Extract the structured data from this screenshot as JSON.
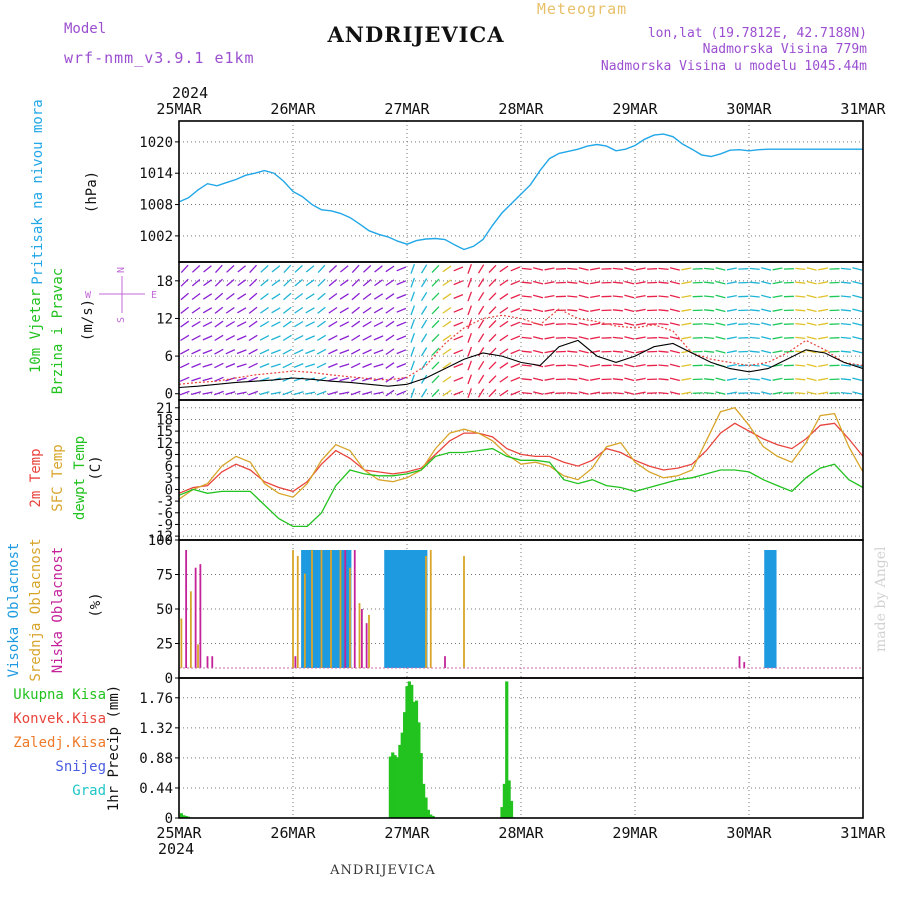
{
  "header": {
    "model_label": "Model",
    "model_name": "wrf-nmm_v3.9.1 e1km",
    "title": "ANDRIJEVICA",
    "subtitle": "Meteogram",
    "lonlat": "lon,lat (19.7812E, 42.7188N)",
    "altitude": "Nadmorska Visina 779m",
    "model_altitude": "Nadmorska Visina u modelu 1045.44m",
    "footer_title": "ANDRIJEVICA",
    "watermark": "made by Angel"
  },
  "colors": {
    "pressure": "#22a7e8",
    "temp2m": "#e8443c",
    "sfc": "#d8a52a",
    "dewpt": "#22c21f",
    "high_cloud": "#1e9be0",
    "mid_cloud": "#d8a52a",
    "low_cloud": "#c4229a",
    "precip_total": "#22c21f",
    "model_text": "#9b4fd0",
    "meteogram_text": "#e8c06a"
  },
  "chart_data": [
    {
      "type": "line",
      "id": "pressure",
      "ylabel": "Pritisak na nivou mora",
      "unit": "(hPa)",
      "ylim": [
        997,
        1024
      ],
      "yticks": [
        "1002",
        "1008",
        "1014",
        "1020"
      ],
      "ytick_values": [
        1002,
        1008,
        1014,
        1020
      ],
      "x_hours": [
        0,
        2,
        4,
        6,
        8,
        10,
        12,
        14,
        16,
        18,
        20,
        22,
        24,
        26,
        28,
        30,
        32,
        34,
        36,
        38,
        40,
        42,
        44,
        46,
        48,
        50,
        52,
        54,
        56,
        58,
        60,
        62,
        64,
        66,
        68,
        70,
        72,
        74,
        76,
        78,
        80,
        82,
        84,
        86,
        88,
        90,
        92,
        94,
        96,
        98,
        100,
        102,
        104,
        106,
        108,
        110,
        112,
        114,
        116,
        118,
        120,
        122,
        124,
        126,
        128,
        130,
        132,
        134,
        136,
        138,
        140,
        142,
        144
      ],
      "series": [
        {
          "values": [
            1008.5,
            1009.3,
            1010.8,
            1012.0,
            1011.6,
            1012.2,
            1012.8,
            1013.6,
            1014.0,
            1014.5,
            1014.0,
            1012.5,
            1010.5,
            1009.5,
            1008.0,
            1007.0,
            1006.8,
            1006.3,
            1005.5,
            1004.3,
            1003.0,
            1002.3,
            1001.8,
            1001.0,
            1000.4,
            1001.1,
            1001.4,
            1001.5,
            1001.3,
            1000.3,
            999.4,
            1000.0,
            1001.3,
            1004.0,
            1006.4,
            1008.2,
            1010.0,
            1011.8,
            1014.5,
            1016.8,
            1017.8,
            1018.2,
            1018.6,
            1019.2,
            1019.5,
            1019.2,
            1018.3,
            1018.6,
            1019.3,
            1020.5,
            1021.3,
            1021.5,
            1021.0,
            1019.6,
            1018.6,
            1017.5,
            1017.2,
            1017.7,
            1018.4,
            1018.5,
            1018.3,
            1018.5,
            1018.6,
            1018.6,
            1018.6,
            1018.6,
            1018.6,
            1018.6,
            1018.6,
            1018.6,
            1018.6,
            1018.6,
            1018.6
          ]
        }
      ]
    },
    {
      "type": "line",
      "id": "wind",
      "ylabel": [
        "10m Vjetar",
        "Brzina i Pravac"
      ],
      "unit": "(m/s)",
      "compass": {
        "north": "N",
        "south": "S",
        "west": "W",
        "east": "E"
      },
      "ylim": [
        -1,
        21
      ],
      "yticks": [
        "0",
        "6",
        "12",
        "18"
      ],
      "ytick_values": [
        0,
        6,
        12,
        18
      ],
      "arrow_columns": 60,
      "arrow_rows": 10,
      "x_hours": [
        0,
        4,
        8,
        12,
        16,
        20,
        24,
        28,
        32,
        36,
        40,
        44,
        48,
        52,
        56,
        60,
        64,
        68,
        72,
        76,
        80,
        84,
        88,
        92,
        96,
        100,
        104,
        108,
        112,
        116,
        120,
        124,
        128,
        132,
        136,
        140,
        144
      ],
      "series": [
        {
          "name": "speed",
          "color": "#000000",
          "values": [
            1.0,
            1.2,
            1.5,
            1.8,
            2.0,
            2.2,
            2.5,
            2.3,
            2.0,
            1.8,
            1.5,
            1.2,
            1.5,
            2.5,
            4.0,
            5.5,
            6.5,
            6.0,
            5.0,
            4.5,
            7.5,
            8.5,
            6.0,
            5.0,
            6.0,
            7.5,
            8.0,
            6.5,
            5.0,
            4.0,
            3.5,
            4.0,
            5.5,
            7.0,
            6.5,
            5.0,
            4.0
          ]
        },
        {
          "name": "gust",
          "color": "#e8443c",
          "values": [
            1.5,
            1.8,
            2.0,
            2.5,
            3.0,
            3.3,
            3.6,
            3.4,
            3.0,
            2.7,
            2.4,
            2.2,
            2.6,
            4.5,
            8.0,
            10.5,
            12.0,
            12.5,
            12.0,
            11.0,
            13.5,
            12.0,
            11.5,
            10.8,
            10.5,
            11.0,
            10.0,
            6.5,
            5.5,
            5.0,
            4.5,
            5.0,
            6.5,
            8.5,
            7.0,
            5.0,
            4.5
          ]
        }
      ],
      "arrow_colors_by_speed": [
        {
          "max_speed": 1,
          "color": "#1f3fd9"
        },
        {
          "max_speed": 3,
          "color": "#8a1fd3"
        },
        {
          "max_speed": 5,
          "color": "#1fb4d6"
        },
        {
          "max_speed": 7,
          "color": "#1fc95a"
        },
        {
          "max_speed": 9,
          "color": "#e0c22a"
        },
        {
          "max_speed": 99,
          "color": "#e8224b"
        }
      ]
    },
    {
      "type": "line",
      "id": "temperature",
      "ylabel": [
        "2m Temp",
        "SFC Temp",
        "dewpt Temp"
      ],
      "unit": "(C)",
      "ylim": [
        -13,
        23
      ],
      "yticks": [
        "-12",
        "-9",
        "-6",
        "-3",
        "0",
        "3",
        "6",
        "9",
        "12",
        "15",
        "18",
        "21"
      ],
      "ytick_values": [
        -12,
        -9,
        -6,
        -3,
        0,
        3,
        6,
        9,
        12,
        15,
        18,
        21
      ],
      "x_hours": [
        0,
        3,
        6,
        9,
        12,
        15,
        18,
        21,
        24,
        27,
        30,
        33,
        36,
        39,
        42,
        45,
        48,
        51,
        54,
        57,
        60,
        63,
        66,
        69,
        72,
        75,
        78,
        81,
        84,
        87,
        90,
        93,
        96,
        99,
        102,
        105,
        108,
        111,
        114,
        117,
        120,
        123,
        126,
        129,
        132,
        135,
        138,
        141,
        144
      ],
      "series": [
        {
          "name": "2m Temp",
          "color": "#e8443c",
          "values": [
            -1.0,
            0.5,
            1.0,
            4.5,
            6.5,
            5.0,
            2.0,
            0.5,
            -0.5,
            2.0,
            6.5,
            10.0,
            8.0,
            5.0,
            4.5,
            4.0,
            4.5,
            5.5,
            9.0,
            12.5,
            14.5,
            14.5,
            13.5,
            10.5,
            9.0,
            8.5,
            8.5,
            7.0,
            6.0,
            7.5,
            10.5,
            9.5,
            7.5,
            6.0,
            5.0,
            5.5,
            6.5,
            10.0,
            14.5,
            17.0,
            15.0,
            13.0,
            11.5,
            10.5,
            13.0,
            16.5,
            17.0,
            13.0,
            8.5
          ]
        },
        {
          "name": "SFC Temp",
          "color": "#d8a52a",
          "values": [
            -2.5,
            0.0,
            1.5,
            6.0,
            8.5,
            7.0,
            1.5,
            -1.0,
            -2.0,
            1.5,
            7.5,
            11.5,
            10.0,
            5.0,
            2.5,
            2.0,
            3.0,
            5.0,
            10.5,
            14.5,
            15.5,
            14.5,
            12.5,
            9.0,
            6.5,
            7.0,
            6.0,
            3.5,
            2.5,
            5.5,
            11.0,
            12.0,
            7.0,
            4.5,
            3.0,
            3.5,
            5.0,
            12.5,
            20.0,
            21.0,
            16.5,
            11.0,
            8.5,
            7.0,
            12.0,
            19.0,
            19.5,
            11.0,
            4.5
          ]
        },
        {
          "name": "dewpt Temp",
          "color": "#22c21f",
          "values": [
            -1.5,
            0.0,
            -1.0,
            -0.5,
            -0.5,
            -0.5,
            -4.0,
            -7.5,
            -9.5,
            -9.5,
            -6.0,
            1.0,
            5.0,
            4.0,
            3.5,
            3.5,
            4.0,
            5.0,
            8.5,
            9.5,
            9.5,
            10.0,
            10.5,
            8.5,
            7.5,
            7.5,
            7.0,
            2.5,
            1.5,
            2.5,
            1.0,
            0.5,
            -0.5,
            0.5,
            1.5,
            2.5,
            3.0,
            4.0,
            5.0,
            5.0,
            4.5,
            2.5,
            1.0,
            -0.5,
            3.0,
            5.5,
            6.5,
            2.5,
            0.5
          ]
        }
      ]
    },
    {
      "type": "bar",
      "id": "clouds",
      "ylabel": [
        "Visoka Oblacnost",
        "Srednja Oblacnost",
        "Niska Oblacnost"
      ],
      "unit": "(%)",
      "ylim": [
        0,
        100
      ],
      "yticks": [
        "0",
        "25",
        "50",
        "75",
        "100"
      ],
      "ytick_values": [
        0,
        25,
        50,
        75,
        100
      ],
      "series": [
        {
          "name": "Visoka Oblacnost",
          "color": "#1e9be0",
          "segments": [
            [
              26.0,
              36.0,
              100
            ],
            [
              43.5,
              52.0,
              100
            ],
            [
              123.5,
              125.5,
              100
            ]
          ]
        },
        {
          "name": "Srednja Oblacnost",
          "color": "#d8a52a",
          "bars": [
            [
              0.5,
              42
            ],
            [
              2.5,
              65
            ],
            [
              4.0,
              20
            ],
            [
              24.0,
              100
            ],
            [
              25.0,
              95
            ],
            [
              26.5,
              80
            ],
            [
              28.0,
              100
            ],
            [
              30.0,
              100
            ],
            [
              32.0,
              100
            ],
            [
              34.0,
              100
            ],
            [
              36.0,
              85
            ],
            [
              38.0,
              55
            ],
            [
              40.0,
              45
            ],
            [
              52.0,
              95
            ],
            [
              53.0,
              100
            ],
            [
              60.0,
              95
            ]
          ]
        },
        {
          "name": "Niska Oblacnost",
          "color": "#c4229a",
          "bars": [
            [
              1.5,
              100
            ],
            [
              3.5,
              85
            ],
            [
              4.5,
              88
            ],
            [
              6.0,
              10
            ],
            [
              7.0,
              10
            ],
            [
              24.5,
              10
            ],
            [
              35.0,
              100
            ],
            [
              37.0,
              100
            ],
            [
              38.5,
              50
            ],
            [
              39.5,
              38
            ],
            [
              56.0,
              10
            ],
            [
              118.0,
              10
            ],
            [
              119.0,
              5
            ]
          ]
        }
      ]
    },
    {
      "type": "bar",
      "id": "precip",
      "ylabel": "1hr Precip (mm)",
      "legend": [
        {
          "name": "Ukupna Kisa",
          "color": "#22c21f"
        },
        {
          "name": "Konvek.Kisa",
          "color": "#e8443c"
        },
        {
          "name": "Zaledj.Kisa",
          "color": "#ee7a2a"
        },
        {
          "name": "Snijeg",
          "color": "#4a5ce0"
        },
        {
          "name": "Grad",
          "color": "#1fc6c6"
        }
      ],
      "ylim": [
        0,
        2.05
      ],
      "yticks": [
        "0",
        "0.44",
        "0.88",
        "1.32",
        "1.76"
      ],
      "ytick_values": [
        0,
        0.44,
        0.88,
        1.32,
        1.76
      ],
      "series": [
        {
          "name": "Ukupna Kisa",
          "color": "#22c21f",
          "bars": [
            [
              0.5,
              0.07
            ],
            [
              1.0,
              0.04
            ],
            [
              1.5,
              0.03
            ],
            [
              2.0,
              0.02
            ],
            [
              44.5,
              0.9
            ],
            [
              45.0,
              0.96
            ],
            [
              45.5,
              0.92
            ],
            [
              46.0,
              0.89
            ],
            [
              46.5,
              1.07
            ],
            [
              47.0,
              1.25
            ],
            [
              47.5,
              1.55
            ],
            [
              48.0,
              1.93
            ],
            [
              48.5,
              2.0
            ],
            [
              49.0,
              1.95
            ],
            [
              49.5,
              1.7
            ],
            [
              50.0,
              1.72
            ],
            [
              50.5,
              1.4
            ],
            [
              51.0,
              0.95
            ],
            [
              51.5,
              0.5
            ],
            [
              52.0,
              0.3
            ],
            [
              52.5,
              0.12
            ],
            [
              53.0,
              0.05
            ],
            [
              53.5,
              0.03
            ],
            [
              68.0,
              0.16
            ],
            [
              68.5,
              0.5
            ],
            [
              69.0,
              2.0
            ],
            [
              69.5,
              0.55
            ],
            [
              70.0,
              0.25
            ]
          ]
        }
      ]
    }
  ],
  "axes": {
    "year": "2024",
    "x_total_hours": 144,
    "dates": [
      "25MAR",
      "26MAR",
      "27MAR",
      "28MAR",
      "29MAR",
      "30MAR",
      "31MAR"
    ]
  }
}
